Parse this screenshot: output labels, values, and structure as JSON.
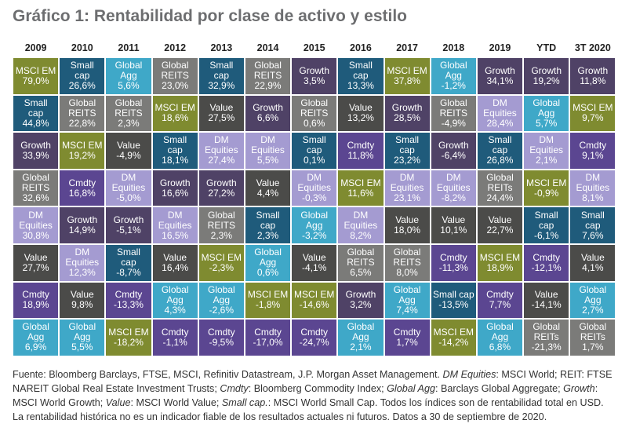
{
  "title": "Gráfico 1: Rentabilidad por clase de activo y estilo",
  "colors": {
    "MSCI EM": "#7f8b30",
    "Small cap": "#1f5b7b",
    "Global Agg": "#3fa8c8",
    "Global REITS": "#7b7b79",
    "Value": "#4b4b49",
    "Growth": "#4f4266",
    "DM Equities": "#a49bd1",
    "Cmdty": "#5b4691"
  },
  "chart_data": {
    "type": "table",
    "title": "Gráfico 1: Rentabilidad por clase de activo y estilo",
    "columns": [
      {
        "year": "2009",
        "cells": [
          [
            "MSCI EM",
            "MSCI EM",
            "79,0%"
          ],
          [
            "Small cap",
            "Small\ncap",
            "44,8%"
          ],
          [
            "Growth",
            "Growth",
            "33,9%"
          ],
          [
            "Global REITS",
            "Global\nREITS",
            "32,6%"
          ],
          [
            "DM Equities",
            "DM\nEquities",
            "30,8%"
          ],
          [
            "Value",
            "Value",
            "27,7%"
          ],
          [
            "Cmdty",
            "Cmdty",
            "18,9%"
          ],
          [
            "Global Agg",
            "Global\nAgg",
            "6,9%"
          ]
        ]
      },
      {
        "year": "2010",
        "cells": [
          [
            "Small cap",
            "Small\ncap",
            "26,6%"
          ],
          [
            "Global REITS",
            "Global\nREITS",
            "22,8%"
          ],
          [
            "MSCI EM",
            "MSCI EM",
            "19,2%"
          ],
          [
            "Cmdty",
            "Cmdty",
            "16,8%"
          ],
          [
            "Growth",
            "Growth",
            "14,9%"
          ],
          [
            "DM Equities",
            "DM\nEquities",
            "12,3%"
          ],
          [
            "Value",
            "Value",
            "9,8%"
          ],
          [
            "Global Agg",
            "Global\nAgg",
            "5,5%"
          ]
        ]
      },
      {
        "year": "2011",
        "cells": [
          [
            "Global Agg",
            "Global\nAgg",
            "5,6%"
          ],
          [
            "Global REITS",
            "Global\nREITS",
            "2,3%"
          ],
          [
            "Value",
            "Value",
            "-4,9%"
          ],
          [
            "DM Equities",
            "DM\nEquities",
            "-5,0%"
          ],
          [
            "Growth",
            "Growth",
            "-5,1%"
          ],
          [
            "Small cap",
            "Small\ncap",
            "-8,7%"
          ],
          [
            "Cmdty",
            "Cmdty",
            "-13,3%"
          ],
          [
            "MSCI EM",
            "MSCI EM",
            "-18,2%"
          ]
        ]
      },
      {
        "year": "2012",
        "cells": [
          [
            "Global REITS",
            "Global\nREITS",
            "23,0%"
          ],
          [
            "MSCI EM",
            "MSCI EM",
            "18,6%"
          ],
          [
            "Small cap",
            "Small\ncap",
            "18,1%"
          ],
          [
            "Growth",
            "Growth",
            "16,6%"
          ],
          [
            "DM Equities",
            "DM\nEquities",
            "16,5%"
          ],
          [
            "Value",
            "Value",
            "16,4%"
          ],
          [
            "Global Agg",
            "Global\nAgg",
            "4,3%"
          ],
          [
            "Cmdty",
            "Cmdty",
            "-1,1%"
          ]
        ]
      },
      {
        "year": "2013",
        "cells": [
          [
            "Small cap",
            "Small\ncap",
            "32,9%"
          ],
          [
            "Value",
            "Value",
            "27,5%"
          ],
          [
            "DM Equities",
            "DM\nEquities",
            "27,4%"
          ],
          [
            "Growth",
            "Growth",
            "27,2%"
          ],
          [
            "Global REITS",
            "Global\nREITS",
            "2,3%"
          ],
          [
            "MSCI EM",
            "MSCI EM",
            "-2,3%"
          ],
          [
            "Global Agg",
            "Global\nAgg",
            "-2,6%"
          ],
          [
            "Cmdty",
            "Cmdty",
            "-9,5%"
          ]
        ]
      },
      {
        "year": "2014",
        "cells": [
          [
            "Global REITS",
            "Global\nREITS",
            "22,9%"
          ],
          [
            "Growth",
            "Growth",
            "6,6%"
          ],
          [
            "DM Equities",
            "DM\nEquities",
            "5,5%"
          ],
          [
            "Value",
            "Value",
            "4,4%"
          ],
          [
            "Small cap",
            "Small\ncap",
            "2,3%"
          ],
          [
            "Global Agg",
            "Global\nAgg",
            "0,6%"
          ],
          [
            "MSCI EM",
            "MSCI EM",
            "-1,8%"
          ],
          [
            "Cmdty",
            "Cmdty",
            "-17,0%"
          ]
        ]
      },
      {
        "year": "2015",
        "cells": [
          [
            "Growth",
            "Growth",
            "3,5%"
          ],
          [
            "Global REITS",
            "Global\nREITS",
            "0,6%"
          ],
          [
            "Small cap",
            "Small\ncap",
            "0,1%"
          ],
          [
            "DM Equities",
            "DM\nEquities",
            "-0,3%"
          ],
          [
            "Global Agg",
            "Global\nAgg",
            "-3,2%"
          ],
          [
            "Value",
            "Value",
            "-4,1%"
          ],
          [
            "MSCI EM",
            "MSCI EM",
            "-14,6%"
          ],
          [
            "Cmdty",
            "Cmdty",
            "-24,7%"
          ]
        ]
      },
      {
        "year": "2016",
        "cells": [
          [
            "Small cap",
            "Small\ncap",
            "13,3%"
          ],
          [
            "Value",
            "Value",
            "13,2%"
          ],
          [
            "Cmdty",
            "Cmdty",
            "11,8%"
          ],
          [
            "MSCI EM",
            "MSCI EM",
            "11,6%"
          ],
          [
            "DM Equities",
            "DM\nEquities",
            "8,2%"
          ],
          [
            "Global REITS",
            "Global\nREITS",
            "6,5%"
          ],
          [
            "Growth",
            "Growth",
            "3,2%"
          ],
          [
            "Global Agg",
            "Global\nAgg",
            "2,1%"
          ]
        ]
      },
      {
        "year": "2017",
        "cells": [
          [
            "MSCI EM",
            "MSCI EM",
            "37,8%"
          ],
          [
            "Growth",
            "Growth",
            "28,5%"
          ],
          [
            "Small cap",
            "Small\ncap",
            "23,2%"
          ],
          [
            "DM Equities",
            "DM\nEquities",
            "23,1%"
          ],
          [
            "Value",
            "Value",
            "18,0%"
          ],
          [
            "Global REITS",
            "Global\nREITS",
            "8,0%"
          ],
          [
            "Global Agg",
            "Global\nAgg",
            "7,4%"
          ],
          [
            "Cmdty",
            "Cmdty",
            "1,7%"
          ]
        ]
      },
      {
        "year": "2018",
        "cells": [
          [
            "Global Agg",
            "Global\nAgg",
            "-1,2%"
          ],
          [
            "Global REITS",
            "Global\nREITS",
            "-4,9%"
          ],
          [
            "Growth",
            "Growth",
            "-6,4%"
          ],
          [
            "DM Equities",
            "DM\nEquities",
            "-8,2%"
          ],
          [
            "Value",
            "Value",
            "10,1%"
          ],
          [
            "Cmdty",
            "Cmdty",
            "-11,3%"
          ],
          [
            "Small cap",
            "Small cap",
            "-13,5%"
          ],
          [
            "MSCI EM",
            "MSCI EM",
            "-14,2%"
          ]
        ]
      },
      {
        "year": "2019",
        "cells": [
          [
            "Growth",
            "Growth",
            "34,1%"
          ],
          [
            "DM Equities",
            "DM\nEquities",
            "28,4%"
          ],
          [
            "Small cap",
            "Small\ncap",
            "26,8%"
          ],
          [
            "Global REITS",
            "Global\nREITs",
            "24,4%"
          ],
          [
            "Value",
            "Value",
            "22,7%"
          ],
          [
            "MSCI EM",
            "MSCI EM",
            "18,9%"
          ],
          [
            "Cmdty",
            "Cmdty",
            "7,7%"
          ],
          [
            "Global Agg",
            "Global\nAgg",
            "6,8%"
          ]
        ]
      },
      {
        "year": "YTD",
        "cells": [
          [
            "Growth",
            "Growth",
            "19,2%"
          ],
          [
            "Global Agg",
            "Global\nAgg",
            "5,7%"
          ],
          [
            "DM Equities",
            "DM\nEquities",
            "2,1%"
          ],
          [
            "MSCI EM",
            "MSCI EM",
            "-0,9%"
          ],
          [
            "Small cap",
            "Small\ncap",
            "-6,1%"
          ],
          [
            "Cmdty",
            "Cmdty",
            "-12,1%"
          ],
          [
            "Value",
            "Value",
            "-14,1%"
          ],
          [
            "Global REITS",
            "Global\nREITs",
            "-21,3%"
          ]
        ]
      },
      {
        "year": "3T 2020",
        "cells": [
          [
            "Growth",
            "Growth",
            "11,8%"
          ],
          [
            "MSCI EM",
            "MSCI EM",
            "9,7%"
          ],
          [
            "Cmdty",
            "Cmdty",
            "9,1%"
          ],
          [
            "DM Equities",
            "DM\nEquities",
            "8,1%"
          ],
          [
            "Small cap",
            "Small\ncap",
            "7,6%"
          ],
          [
            "Value",
            "Value",
            "4,1%"
          ],
          [
            "Global Agg",
            "Global\nAgg",
            "2,7%"
          ],
          [
            "Global REITS",
            "Global\nREITs",
            "1,7%"
          ]
        ]
      }
    ]
  },
  "footnote": [
    {
      "t": "Fuente: Bloomberg Barclays, FTSE, MSCI, Refinitiv Datastream, J.P. Morgan Asset Management. ",
      "i": false
    },
    {
      "t": "DM Equities",
      "i": true
    },
    {
      "t": ": MSCI World; REIT: FTSE NAREIT Global Real Estate Investment Trusts; ",
      "i": false
    },
    {
      "t": "Cmdty",
      "i": true
    },
    {
      "t": ": Bloomberg Commodity Index; ",
      "i": false
    },
    {
      "t": "Global Agg",
      "i": true
    },
    {
      "t": ": Barclays Global Aggregate; ",
      "i": false
    },
    {
      "t": "Growth",
      "i": true
    },
    {
      "t": ": MSCI World Growth; ",
      "i": false
    },
    {
      "t": "Value",
      "i": true
    },
    {
      "t": ": MSCI World Value; ",
      "i": false
    },
    {
      "t": "Small cap.",
      "i": true
    },
    {
      "t": ": MSCI World Small Cap. Todos los índices son de rentabilidad total en USD. La rentabilidad histórica no es un indicador fiable de los resultados actuales ni futuros. Datos a 30 de septiembre de 2020.",
      "i": false
    }
  ]
}
